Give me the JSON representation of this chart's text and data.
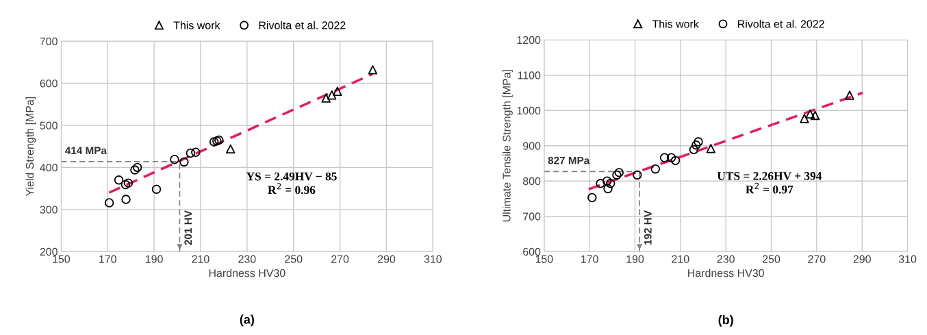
{
  "chart_data": [
    {
      "type": "scatter",
      "xlabel": "Hardness HV30",
      "ylabel": "Yield Strength [MPa]",
      "xlim": [
        150,
        310
      ],
      "xticks": [
        150,
        170,
        190,
        210,
        230,
        250,
        270,
        290,
        310
      ],
      "ylim": [
        200,
        700
      ],
      "yticks": [
        200,
        300,
        400,
        500,
        600,
        700
      ],
      "grid": true,
      "legend": "top",
      "series": [
        {
          "name": "This work",
          "color": "#000000",
          "marker": "triangle",
          "x": [
            222.9,
            264,
            266.5,
            268.9,
            284.1
          ],
          "values": [
            444,
            565,
            572,
            581,
            632
          ]
        },
        {
          "name": "Rivolta et al. 2022",
          "color": "#000000",
          "marker": "circle",
          "x": [
            170.7,
            174.8,
            177.9,
            177.7,
            178.9,
            181.7,
            182.8,
            191,
            198.8,
            202.9,
            205.7,
            207.9,
            215.8,
            217,
            217.9
          ],
          "values": [
            316,
            370,
            324,
            359,
            363,
            394,
            400,
            348,
            419,
            413,
            434,
            436,
            461,
            463,
            465
          ]
        },
        {
          "type": "line",
          "color": "#e8195a",
          "line_style": "dashed",
          "marker": "none",
          "x": [
            170.6,
            284
          ],
          "values": [
            340,
            622
          ]
        }
      ],
      "ref_lines": [
        {
          "axis": "y",
          "value": 414,
          "label": "414 MPa",
          "color": "#808080",
          "line_style": "dashed"
        },
        {
          "axis": "x",
          "value": 201,
          "label": "201 HV",
          "color": "#808080",
          "line_style": "dashed"
        }
      ],
      "annotations": [
        "YS = 2.49HV − 85\nR$^{2}$ = 0.96",
        "(a)"
      ]
    },
    {
      "type": "scatter",
      "xlabel": "Hardness HV30",
      "ylabel": "Ultimate Tensile Strength [MPa]",
      "xlim": [
        150,
        310
      ],
      "xticks": [
        150,
        170,
        190,
        210,
        230,
        250,
        270,
        290,
        310
      ],
      "ylim": [
        600,
        1200
      ],
      "yticks": [
        600,
        700,
        800,
        900,
        1000,
        1100,
        1200
      ],
      "grid": true,
      "legend": "top",
      "series": [
        {
          "name": "This work",
          "color": "#000000",
          "marker": "triangle",
          "x": [
            223.4,
            264.6,
            267.1,
            269.3,
            284.5
          ],
          "values": [
            892,
            977,
            990,
            986,
            1043
          ]
        },
        {
          "name": "Rivolta et al. 2022",
          "color": "#000000",
          "marker": "circle",
          "x": [
            171.1,
            174.8,
            177.7,
            178.1,
            179.2,
            182,
            183,
            191,
            199,
            203,
            206,
            207.8,
            215.9,
            216.9,
            217.9
          ],
          "values": [
            753,
            793,
            800,
            778,
            793,
            817,
            824,
            817,
            834,
            866,
            866,
            858,
            889,
            902,
            911
          ]
        },
        {
          "type": "line",
          "color": "#e8195a",
          "line_style": "dashed",
          "marker": "none",
          "x": [
            169.6,
            290.3
          ],
          "values": [
            777,
            1050
          ]
        }
      ],
      "ref_lines": [
        {
          "axis": "y",
          "value": 827,
          "label": "827 MPa",
          "color": "#808080",
          "line_style": "dashed"
        },
        {
          "axis": "x",
          "value": 192,
          "label": "192 HV",
          "color": "#808080",
          "line_style": "dashed"
        }
      ],
      "annotations": [
        "UTS = 2.26HV + 394\nR$^{2}$ = 0.97",
        "(b)"
      ]
    }
  ]
}
